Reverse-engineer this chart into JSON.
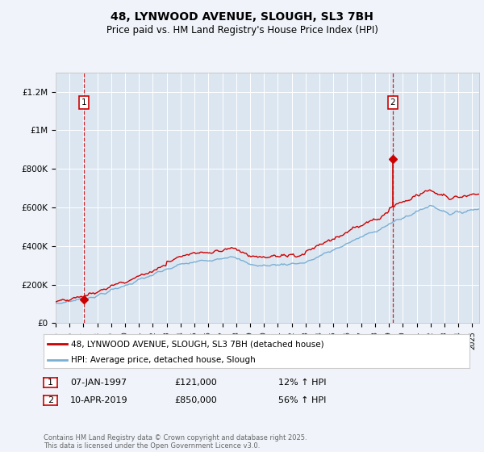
{
  "title": "48, LYNWOOD AVENUE, SLOUGH, SL3 7BH",
  "subtitle": "Price paid vs. HM Land Registry's House Price Index (HPI)",
  "background_color": "#dce6f1",
  "plot_bg_color": "#dce6f1",
  "fig_bg_color": "#f0f4fa",
  "red_color": "#cc0000",
  "blue_color": "#7bafd4",
  "grid_color": "#ffffff",
  "ylim": [
    0,
    1300000
  ],
  "xlim_start": 1995.0,
  "xlim_end": 2025.5,
  "purchase1_year": 1997.03,
  "purchase1_price": 121000,
  "purchase2_year": 2019.27,
  "purchase2_price": 850000,
  "legend_label_red": "48, LYNWOOD AVENUE, SLOUGH, SL3 7BH (detached house)",
  "legend_label_blue": "HPI: Average price, detached house, Slough",
  "annotation1_date": "07-JAN-1997",
  "annotation1_price": "£121,000",
  "annotation1_hpi": "12% ↑ HPI",
  "annotation2_date": "10-APR-2019",
  "annotation2_price": "£850,000",
  "annotation2_hpi": "56% ↑ HPI",
  "footer": "Contains HM Land Registry data © Crown copyright and database right 2025.\nThis data is licensed under the Open Government Licence v3.0.",
  "yticks": [
    0,
    200000,
    400000,
    600000,
    800000,
    1000000,
    1200000
  ],
  "ytick_labels": [
    "£0",
    "£200K",
    "£400K",
    "£600K",
    "£800K",
    "£1M",
    "£1.2M"
  ]
}
